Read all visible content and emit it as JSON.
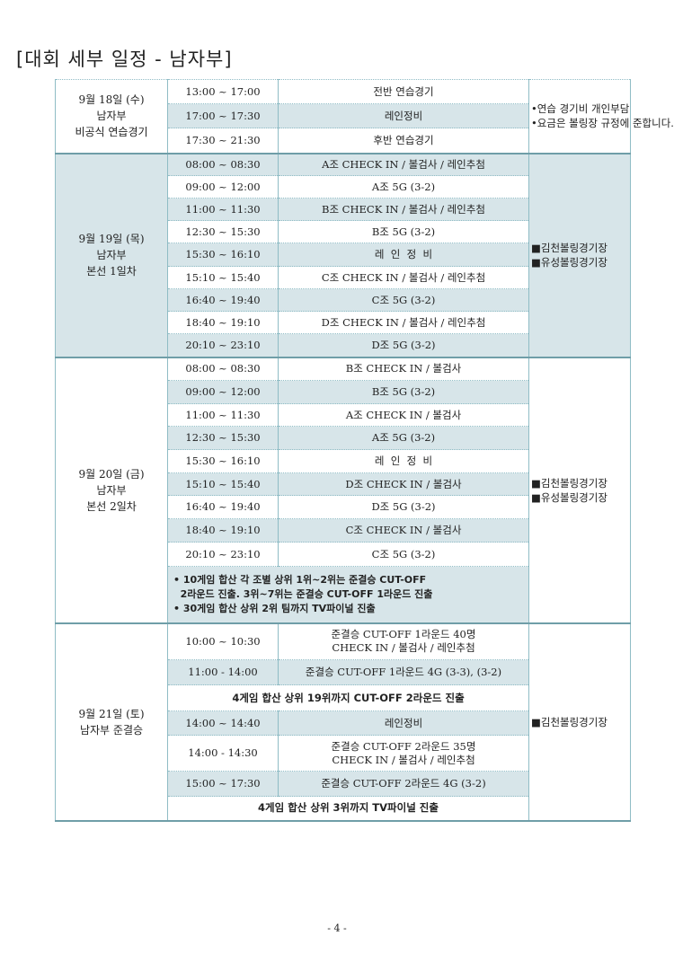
{
  "title": "[대회 세부 일정 - 남자부]",
  "days": [
    {
      "date": [
        "9월 18일 (수)",
        "남자부",
        "비공식 연습경기"
      ],
      "venue": [
        "•연습 경기비 개인부담",
        "•요금은 볼링장 규정에 준합니다."
      ],
      "rows": [
        [
          "13:00 ~ 17:00",
          "전반 연습경기"
        ],
        [
          "17:00 ~ 17:30",
          "레인정비"
        ],
        [
          "17:30 ~ 21:30",
          "후반 연습경기"
        ]
      ]
    },
    {
      "date": [
        "9월 19일 (목)",
        "남자부",
        "본선 1일차"
      ],
      "venue": [
        "■김천볼링경기장",
        "■유성볼링경기장"
      ],
      "rows": [
        [
          "08:00 ~ 08:30",
          "A조 CHECK IN / 볼검사 / 레인추첨"
        ],
        [
          "09:00 ~ 12:00",
          "A조 5G (3-2)"
        ],
        [
          "11:00 ~ 11:30",
          "B조 CHECK IN / 볼검사 / 레인추첨"
        ],
        [
          "12:30 ~ 15:30",
          "B조 5G (3-2)"
        ],
        [
          "15:30 ~ 16:10",
          "레  인  정  비"
        ],
        [
          "15:10 ~ 15:40",
          "C조 CHECK IN / 볼검사 / 레인추첨"
        ],
        [
          "16:40 ~ 19:40",
          "C조 5G (3-2)"
        ],
        [
          "18:40 ~ 19:10",
          "D조 CHECK IN / 볼검사 / 레인추첨"
        ],
        [
          "20:10 ~ 23:10",
          "D조 5G (3-2)"
        ]
      ]
    },
    {
      "date": [
        "9월 20일 (금)",
        "남자부",
        "본선 2일차"
      ],
      "venue": [
        "■김천볼링경기장",
        "■유성볼링경기장"
      ],
      "rows": [
        [
          "08:00 ~ 08:30",
          "B조 CHECK IN / 볼검사"
        ],
        [
          "09:00 ~ 12:00",
          "B조 5G (3-2)"
        ],
        [
          "11:00 ~ 11:30",
          "A조 CHECK IN / 볼검사"
        ],
        [
          "12:30 ~ 15:30",
          "A조 5G (3-2)"
        ],
        [
          "15:30 ~ 16:10",
          "레  인  정  비"
        ],
        [
          "15:10 ~ 15:40",
          "D조 CHECK IN / 볼검사"
        ],
        [
          "16:40 ~ 19:40",
          "D조 5G (3-2)"
        ],
        [
          "18:40 ~ 19:10",
          "C조 CHECK IN / 볼검사"
        ],
        [
          "20:10 ~ 23:10",
          "C조 5G (3-2)"
        ]
      ],
      "notes": [
        "• 10게임 합산 각 조별 상위 1위~2위는 준결승 CUT-OFF",
        "  2라운드 진출. 3위~7위는 준결승 CUT-OFF 1라운드 진출",
        "• 30게임 합산 상위 2위 팀까지 TV파이널 진출"
      ]
    },
    {
      "date": [
        "9월 21일 (토)",
        "남자부 준결승"
      ],
      "venue": [
        "■김천볼링경기장"
      ],
      "rows": [
        [
          "10:00 ~ 10:30",
          "준결승 CUT-OFF 1라운드 40명",
          "CHECK IN / 볼검사 / 레인추첨"
        ],
        [
          "11:00 - 14:00",
          "준결승 CUT-OFF 1라운드 4G (3-3), (3-2)"
        ],
        [
          "4게임 합산 상위 19위까지 CUT-OFF 2라운드 진출"
        ],
        [
          "14:00 ~ 14:40",
          "레인정비"
        ],
        [
          "14:00 - 14:30",
          "준결승 CUT-OFF 2라운드 35명",
          "CHECK IN / 볼검사 / 레인추첨"
        ],
        [
          "15:00 ~ 17:30",
          "준결승 CUT-OFF 2라운드 4G (3-2)"
        ],
        [
          "4게임 합산 상위 3위까지 TV파이널 진출"
        ]
      ]
    }
  ],
  "page_number": "- 4 -"
}
